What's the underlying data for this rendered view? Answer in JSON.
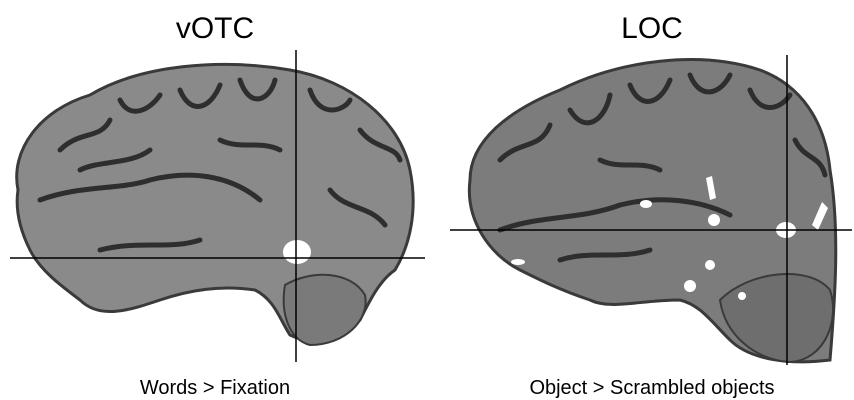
{
  "panels": [
    {
      "title": "vOTC",
      "caption": "Words > Fixation"
    },
    {
      "title": "LOC",
      "caption": "Object > Scrambled objects"
    }
  ]
}
